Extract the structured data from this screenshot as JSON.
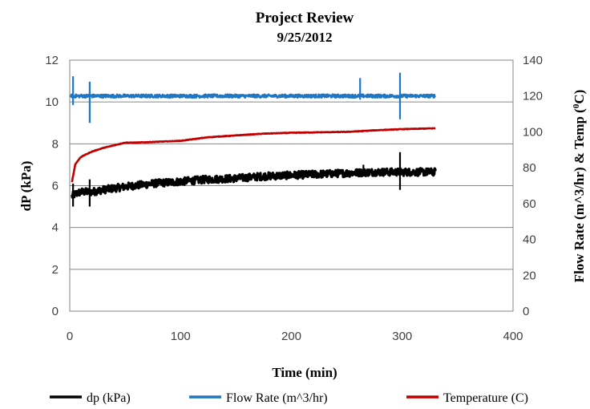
{
  "chart_data": {
    "type": "line",
    "title": "Project Review",
    "subtitle": "9/25/2012",
    "xlabel": "Time (min)",
    "ylabel": "dP (kPa)",
    "y2label": "Flow Rate (m^3/hr) & Temp (",
    "y2label_unit_sup": "0",
    "y2label_end": "C)",
    "xlim": [
      0,
      400
    ],
    "ylim": [
      0,
      12
    ],
    "y2lim": [
      0,
      140
    ],
    "x_ticks": [
      "0",
      "100",
      "200",
      "300",
      "400"
    ],
    "y_ticks": [
      "0",
      "2",
      "4",
      "6",
      "8",
      "10",
      "12"
    ],
    "y2_ticks": [
      "0",
      "20",
      "40",
      "60",
      "80",
      "100",
      "120",
      "140"
    ],
    "grid": "horizontal",
    "legend_position": "bottom",
    "series": [
      {
        "name": "dp (kPa)",
        "axis": "left",
        "color": "#000000",
        "x": [
          2,
          5,
          10,
          20,
          30,
          50,
          75,
          100,
          125,
          150,
          175,
          200,
          225,
          250,
          275,
          300,
          320,
          330
        ],
        "y": [
          5.5,
          5.6,
          5.7,
          5.7,
          5.8,
          5.95,
          6.1,
          6.2,
          6.3,
          6.35,
          6.45,
          6.5,
          6.55,
          6.6,
          6.65,
          6.65,
          6.65,
          6.65
        ],
        "spikes": [
          [
            3,
            5.0,
            6.1
          ],
          [
            18,
            5.0,
            6.3
          ],
          [
            265,
            6.5,
            7.0
          ],
          [
            298,
            5.8,
            7.6
          ]
        ]
      },
      {
        "name": "Flow Rate (m^3/hr)",
        "axis": "right",
        "color": "#1f77c4",
        "x": [
          1,
          10,
          50,
          100,
          150,
          200,
          250,
          300,
          330
        ],
        "y": [
          120,
          120,
          120,
          120,
          120,
          120,
          120,
          120,
          120
        ],
        "spikes": [
          [
            3,
            115,
            131
          ],
          [
            18,
            105,
            128
          ],
          [
            262,
            118,
            130
          ],
          [
            298,
            107,
            133
          ]
        ]
      },
      {
        "name": "Temperature (C)",
        "axis": "right",
        "color": "#c00000",
        "x": [
          2,
          5,
          10,
          20,
          30,
          40,
          50,
          60,
          80,
          100,
          125,
          150,
          175,
          200,
          250,
          280,
          300,
          330
        ],
        "y": [
          72,
          82,
          86,
          89,
          91,
          92.5,
          94,
          94,
          94.5,
          95,
          97,
          98,
          99,
          99.5,
          100,
          101,
          101.5,
          102
        ]
      }
    ]
  }
}
